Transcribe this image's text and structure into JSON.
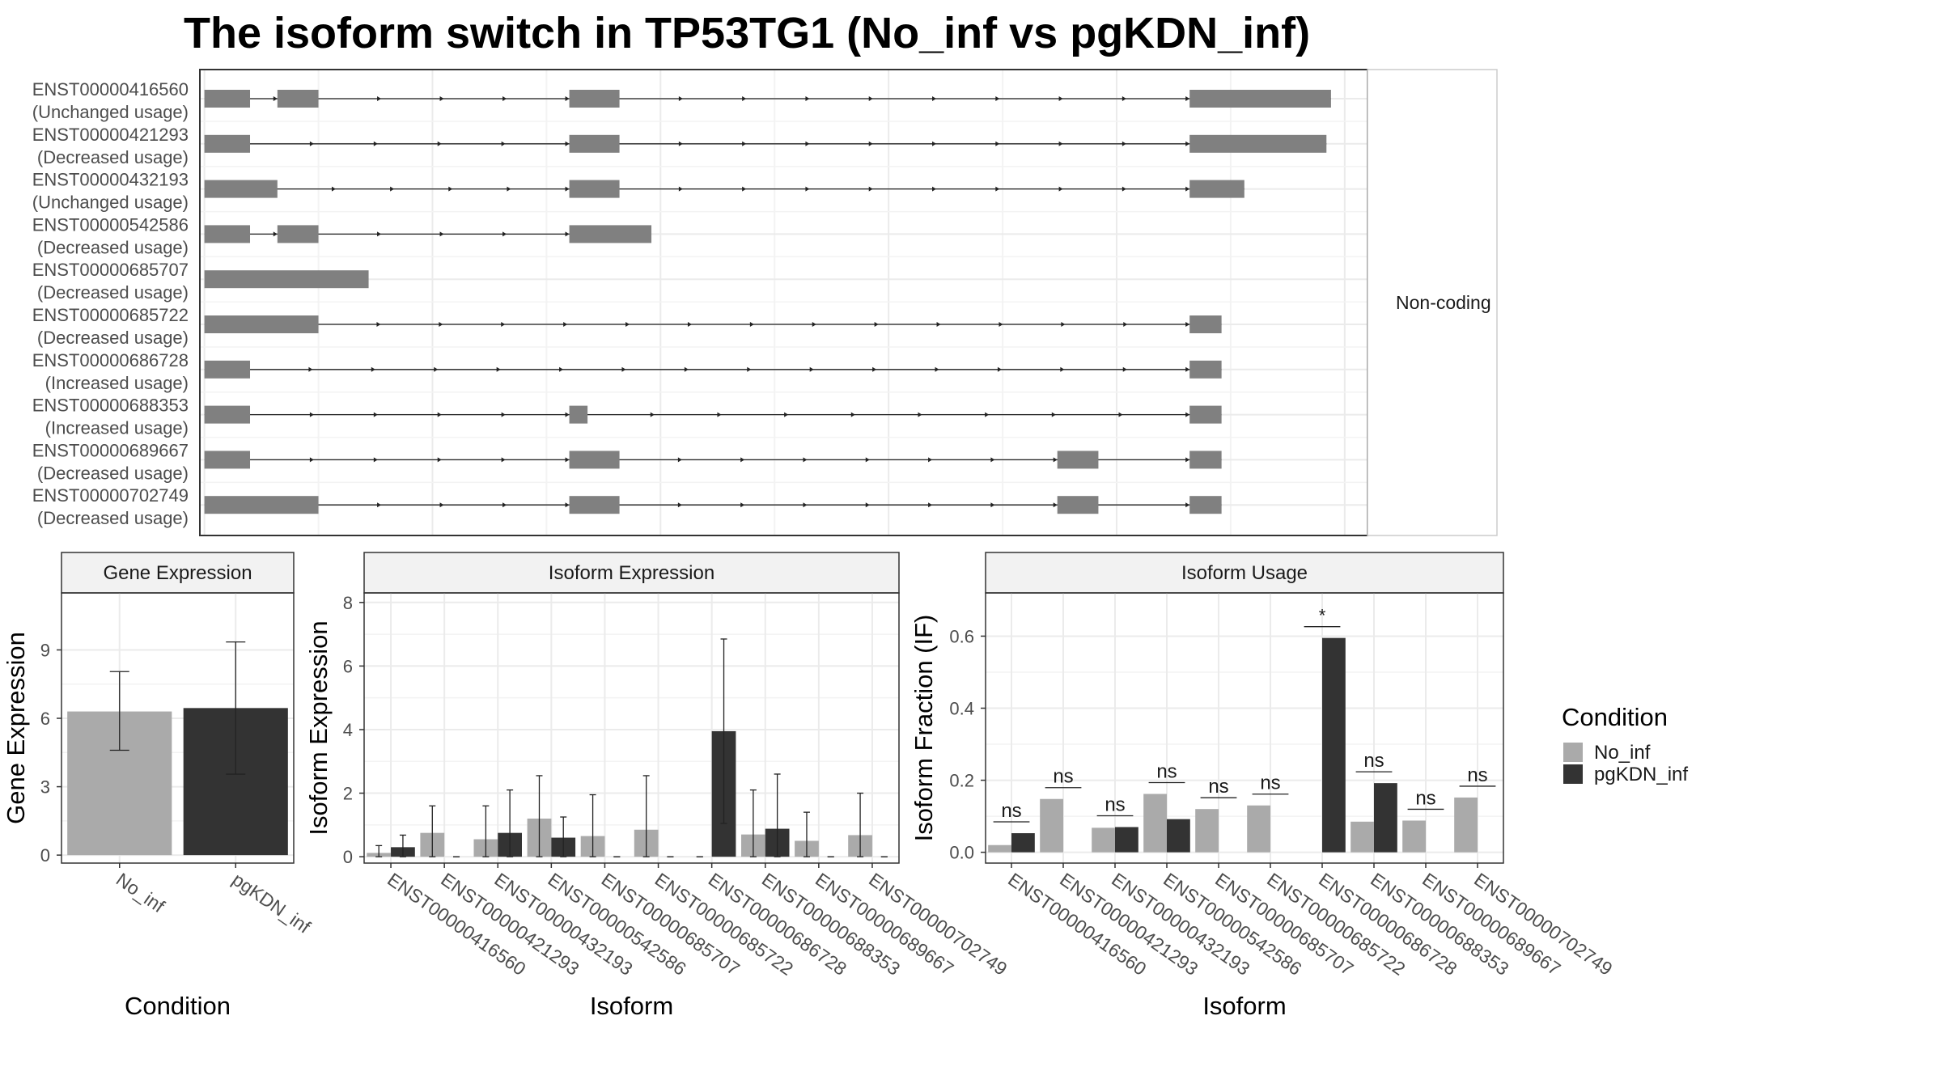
{
  "title": "The isoform switch in TP53TG1 (No_inf vs pgKDN_inf)",
  "colors": {
    "No_inf": "#aaaaaa",
    "pgKDN_inf": "#333333",
    "exon": "#808080"
  },
  "legend": {
    "title": "Condition",
    "items": [
      "No_inf",
      "pgKDN_inf"
    ]
  },
  "chart_data": [
    {
      "type": "gene-structure",
      "strip_label": "Non-coding",
      "transcripts": [
        {
          "id": "ENST00000416560",
          "label": "(Unchanged usage)",
          "exons": [
            [
              0,
              10
            ],
            [
              16,
              25
            ],
            [
              80,
              91
            ],
            [
              216,
              247
            ]
          ]
        },
        {
          "id": "ENST00000421293",
          "label": "(Decreased usage)",
          "exons": [
            [
              0,
              10
            ],
            [
              80,
              91
            ],
            [
              216,
              246
            ]
          ]
        },
        {
          "id": "ENST00000432193",
          "label": "(Unchanged usage)",
          "exons": [
            [
              0,
              16
            ],
            [
              80,
              91
            ],
            [
              216,
              228
            ]
          ]
        },
        {
          "id": "ENST00000542586",
          "label": "(Decreased usage)",
          "exons": [
            [
              0,
              10
            ],
            [
              16,
              25
            ],
            [
              80,
              98
            ]
          ]
        },
        {
          "id": "ENST00000685707",
          "label": "(Decreased usage)",
          "exons": [
            [
              0,
              36
            ]
          ]
        },
        {
          "id": "ENST00000685722",
          "label": "(Decreased usage)",
          "exons": [
            [
              0,
              25
            ],
            [
              216,
              223
            ]
          ]
        },
        {
          "id": "ENST00000686728",
          "label": "(Increased usage)",
          "exons": [
            [
              0,
              10
            ],
            [
              216,
              223
            ]
          ]
        },
        {
          "id": "ENST00000688353",
          "label": "(Increased usage)",
          "exons": [
            [
              0,
              10
            ],
            [
              80,
              84
            ],
            [
              216,
              223
            ]
          ]
        },
        {
          "id": "ENST00000689667",
          "label": "(Decreased usage)",
          "exons": [
            [
              0,
              10
            ],
            [
              80,
              91
            ],
            [
              187,
              196
            ],
            [
              216,
              223
            ]
          ]
        },
        {
          "id": "ENST00000702749",
          "label": "(Decreased usage)",
          "exons": [
            [
              0,
              25
            ],
            [
              80,
              91
            ],
            [
              187,
              196
            ],
            [
              216,
              223
            ]
          ]
        }
      ],
      "xlim": [
        -1,
        255
      ]
    },
    {
      "type": "bar",
      "strip": "Gene Expression",
      "xlabel": "Condition",
      "ylabel": "Gene Expression",
      "categories": [
        "No_inf",
        "pgKDN_inf"
      ],
      "values": [
        6.3,
        6.45
      ],
      "error": [
        [
          4.6,
          8.05
        ],
        [
          3.55,
          9.35
        ]
      ],
      "ylim": [
        -0.35,
        11.5
      ],
      "yticks": [
        0,
        3,
        6,
        9
      ]
    },
    {
      "type": "bar",
      "strip": "Isoform Expression",
      "xlabel": "Isoform",
      "ylabel": "Isoform Expression",
      "categories": [
        "ENST00000416560",
        "ENST00000421293",
        "ENST00000432193",
        "ENST00000542586",
        "ENST00000685707",
        "ENST00000685722",
        "ENST00000686728",
        "ENST00000688353",
        "ENST00000689667",
        "ENST00000702749"
      ],
      "series": [
        {
          "name": "No_inf",
          "values": [
            0.12,
            0.75,
            0.55,
            1.2,
            0.65,
            0.85,
            0,
            0.7,
            0.5,
            0.68
          ],
          "error": [
            [
              0,
              0.35
            ],
            [
              0,
              1.6
            ],
            [
              0,
              1.6
            ],
            [
              0,
              2.55
            ],
            [
              0,
              1.95
            ],
            [
              0,
              2.55
            ],
            [
              0,
              0
            ],
            [
              0,
              2.1
            ],
            [
              0,
              1.4
            ],
            [
              0,
              2.0
            ]
          ]
        },
        {
          "name": "pgKDN_inf",
          "values": [
            0.3,
            0,
            0.75,
            0.6,
            0,
            0,
            3.95,
            0.88,
            0,
            0
          ],
          "error": [
            [
              0,
              0.68
            ],
            [
              0,
              0
            ],
            [
              0,
              2.1
            ],
            [
              0,
              1.25
            ],
            [
              0,
              0
            ],
            [
              0,
              0
            ],
            [
              1.05,
              6.85
            ],
            [
              0,
              2.6
            ],
            [
              0,
              0
            ],
            [
              0,
              0
            ]
          ]
        }
      ],
      "ylim": [
        -0.2,
        8.3
      ],
      "yticks": [
        0,
        2,
        4,
        6,
        8
      ]
    },
    {
      "type": "bar",
      "strip": "Isoform Usage",
      "xlabel": "Isoform",
      "ylabel": "Isoform Fraction (IF)",
      "categories": [
        "ENST00000416560",
        "ENST00000421293",
        "ENST00000432193",
        "ENST00000542586",
        "ENST00000685707",
        "ENST00000685722",
        "ENST00000686728",
        "ENST00000688353",
        "ENST00000689667",
        "ENST00000702749"
      ],
      "series": [
        {
          "name": "No_inf",
          "values": [
            0.02,
            0.148,
            0.068,
            0.162,
            0.12,
            0.13,
            0,
            0.085,
            0.088,
            0.152
          ]
        },
        {
          "name": "pgKDN_inf",
          "values": [
            0.053,
            0,
            0.07,
            0.092,
            0,
            0,
            0.595,
            0.192,
            0,
            0
          ]
        }
      ],
      "significance": [
        "ns",
        "ns",
        "ns",
        "ns",
        "ns",
        "ns",
        "*",
        "ns",
        "ns",
        "ns"
      ],
      "ylim": [
        -0.03,
        0.72
      ],
      "yticks": [
        0.0,
        0.2,
        0.4,
        0.6
      ],
      "ytick_labels": [
        "0.0",
        "0.2",
        "0.4",
        "0.6"
      ]
    }
  ]
}
